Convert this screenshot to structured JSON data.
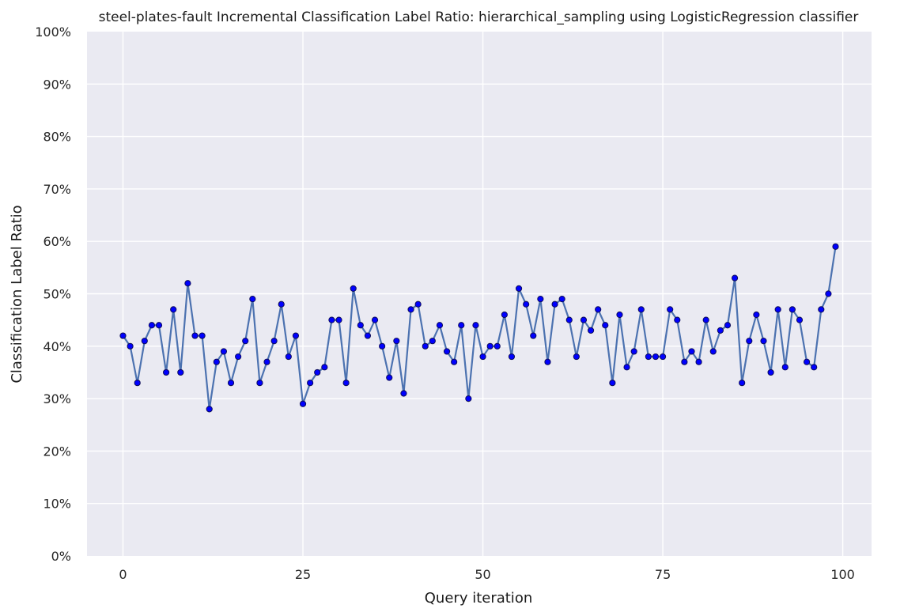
{
  "chart_data": {
    "type": "line",
    "title": "steel-plates-fault Incremental Classification Label Ratio: hierarchical_sampling using LogisticRegression classifier",
    "xlabel": "Query iteration",
    "ylabel": "Classification Label Ratio",
    "xlim": [
      -5,
      104
    ],
    "ylim": [
      0,
      1
    ],
    "x_ticks": [
      0,
      25,
      50,
      75,
      100
    ],
    "x_tick_labels": [
      "0",
      "25",
      "50",
      "75",
      "100"
    ],
    "y_ticks": [
      0,
      0.1,
      0.2,
      0.3,
      0.4,
      0.5,
      0.6,
      0.7,
      0.8,
      0.9,
      1.0
    ],
    "y_tick_labels": [
      "0%",
      "10%",
      "20%",
      "30%",
      "40%",
      "50%",
      "60%",
      "70%",
      "80%",
      "90%",
      "100%"
    ],
    "grid": true,
    "colors": {
      "background": "#eaeaf2",
      "line": "#4c72b0",
      "marker": "#0000ff",
      "grid": "#ffffff"
    },
    "x": [
      0,
      1,
      2,
      3,
      4,
      5,
      6,
      7,
      8,
      9,
      10,
      11,
      12,
      13,
      14,
      15,
      16,
      17,
      18,
      19,
      20,
      21,
      22,
      23,
      24,
      25,
      26,
      27,
      28,
      29,
      30,
      31,
      32,
      33,
      34,
      35,
      36,
      37,
      38,
      39,
      40,
      41,
      42,
      43,
      44,
      45,
      46,
      47,
      48,
      49,
      50,
      51,
      52,
      53,
      54,
      55,
      56,
      57,
      58,
      59,
      60,
      61,
      62,
      63,
      64,
      65,
      66,
      67,
      68,
      69,
      70,
      71,
      72,
      73,
      74,
      75,
      76,
      77,
      78,
      79,
      80,
      81,
      82,
      83,
      84,
      85,
      86,
      87,
      88,
      89,
      90,
      91,
      92,
      93,
      94,
      95,
      96,
      97,
      98,
      99
    ],
    "y": [
      0.42,
      0.4,
      0.33,
      0.41,
      0.44,
      0.44,
      0.35,
      0.47,
      0.35,
      0.52,
      0.42,
      0.42,
      0.28,
      0.37,
      0.39,
      0.33,
      0.38,
      0.41,
      0.49,
      0.33,
      0.37,
      0.41,
      0.48,
      0.38,
      0.42,
      0.29,
      0.33,
      0.35,
      0.36,
      0.45,
      0.45,
      0.33,
      0.51,
      0.44,
      0.42,
      0.45,
      0.4,
      0.34,
      0.41,
      0.31,
      0.47,
      0.48,
      0.4,
      0.41,
      0.44,
      0.39,
      0.37,
      0.44,
      0.3,
      0.44,
      0.38,
      0.4,
      0.4,
      0.46,
      0.38,
      0.51,
      0.48,
      0.42,
      0.49,
      0.37,
      0.48,
      0.49,
      0.45,
      0.38,
      0.45,
      0.43,
      0.47,
      0.44,
      0.33,
      0.46,
      0.36,
      0.39,
      0.47,
      0.38,
      0.38,
      0.38,
      0.47,
      0.45,
      0.37,
      0.39,
      0.37,
      0.45,
      0.39,
      0.43,
      0.44,
      0.53,
      0.33,
      0.41,
      0.46,
      0.41,
      0.35,
      0.47,
      0.36,
      0.47,
      0.45,
      0.37,
      0.36,
      0.47,
      0.5,
      0.59
    ]
  }
}
